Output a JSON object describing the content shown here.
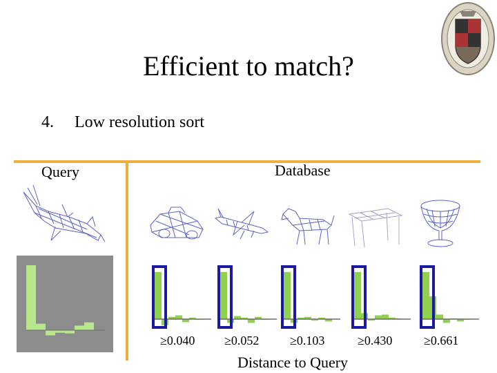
{
  "slide": {
    "title": "Efficient to match?",
    "bullet_number": "4.",
    "bullet_text": "Low resolution sort",
    "query_label": "Query",
    "database_label": "Database",
    "caption": "Distance to Query"
  },
  "database": [
    {
      "object": "car",
      "distance": "≥0.040",
      "bars": [
        0.62,
        -0.08,
        0.03,
        0.05,
        -0.04,
        0.02,
        0.0
      ]
    },
    {
      "object": "airplane",
      "distance": "≥0.052",
      "bars": [
        0.62,
        -0.05,
        0.04,
        0.02,
        -0.05,
        0.03,
        0.0
      ]
    },
    {
      "object": "dog",
      "distance": "≥0.103",
      "bars": [
        0.62,
        -0.05,
        0.02,
        0.03,
        -0.02,
        0.02,
        -0.03
      ]
    },
    {
      "object": "table",
      "distance": "≥0.430",
      "bars": [
        0.62,
        0.08,
        -0.02,
        0.05,
        0.06,
        0.02,
        0.01
      ]
    },
    {
      "object": "goblet",
      "distance": "≥0.661",
      "bars": [
        0.62,
        0.3,
        0.06,
        -0.05,
        0.01,
        -0.03,
        0.0
      ]
    }
  ],
  "query_histogram": [
    1.0,
    0.1,
    -0.08,
    -0.04,
    -0.05,
    0.07,
    0.12
  ],
  "colors": {
    "accent_line": "#f0b040",
    "bar": "#8fd14f",
    "highlight_box": "#1a1aa0",
    "query_panel": "#8c8c8c",
    "query_bar": "#b8e68a",
    "wireframe": "#5a63c8"
  },
  "icons": [
    "shark-wireframe-icon",
    "car-wireframe-icon",
    "airplane-wireframe-icon",
    "dog-wireframe-icon",
    "table-wireframe-icon",
    "goblet-wireframe-icon",
    "university-seal-icon"
  ]
}
